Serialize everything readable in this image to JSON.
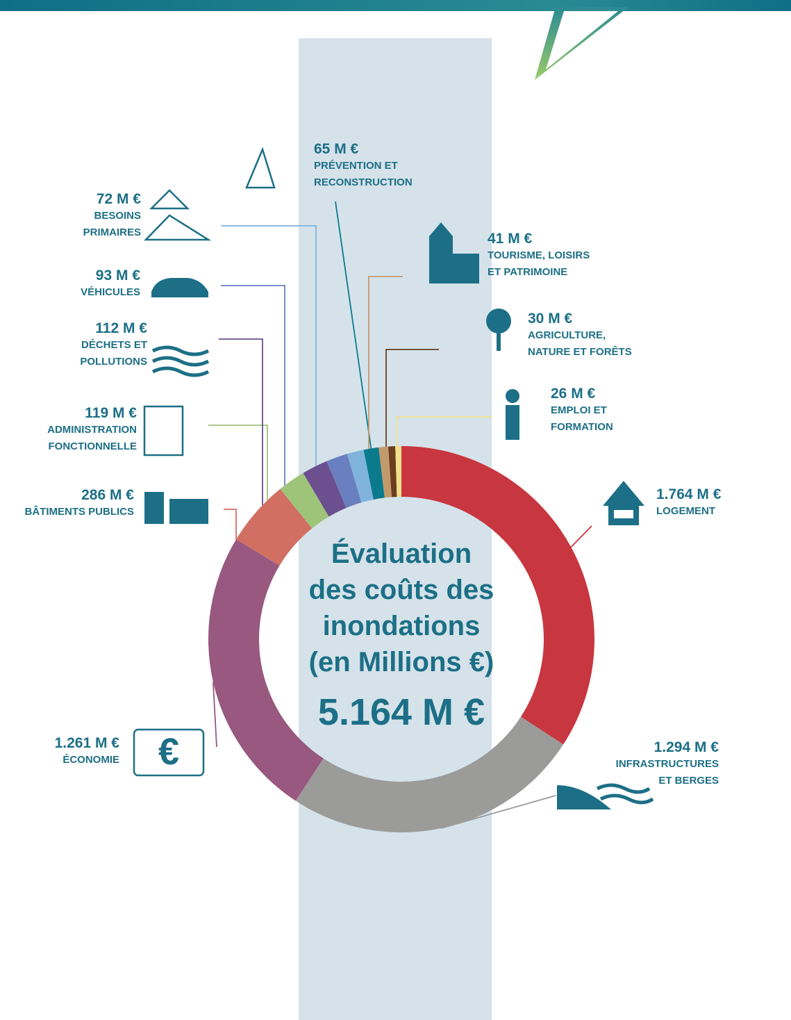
{
  "chart_data": {
    "type": "donut",
    "title": "Évaluation\ndes coûts des\ninondations\n(en Millions €)",
    "subtitle": "5.164 M €",
    "categories": [
      "LOGEMENT",
      "INFRASTRUCTURES\nET BERGES",
      "ÉCONOMIE",
      "BÂTIMENTS PUBLICS",
      "ADMINISTRATION\nFONCTIONNELLE",
      "DÉCHETS ET\nPOLLUTIONS",
      "VÉHICULES",
      "BESOINS\nPRIMAIRES",
      "PRÉVENTION ET\nRECONSTRUCTION",
      "TOURISME, LOISIRS\nET PATRIMOINE",
      "AGRICULTURE,\nNATURE ET FORÊTS",
      "EMPLOI ET\nFORMATION"
    ],
    "values": [
      1764,
      1294,
      1261,
      286,
      119,
      112,
      93,
      72,
      65,
      41,
      30,
      26
    ],
    "value_labels": [
      "1.764 M €",
      "1.294 M €",
      "1.261 M €",
      "286 M €",
      "119 M €",
      "112 M €",
      "93 M €",
      "72 M €",
      "65 M €",
      "41 M €",
      "30 M €",
      "26 M €"
    ],
    "colors": [
      "#c8363f",
      "#9b9b9a",
      "#98587f",
      "#d26f63",
      "#9ec47a",
      "#6b4f8e",
      "#6a7fc0",
      "#80b3dc",
      "#0a7a8c",
      "#c49a6c",
      "#6b3e1e",
      "#f0e08a"
    ],
    "icon_text": "€"
  }
}
